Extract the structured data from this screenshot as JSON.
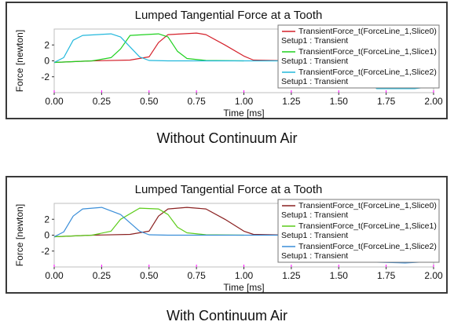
{
  "captions": [
    "Without Continuum Air",
    "With Continuum Air"
  ],
  "colors": {
    "slice0": "#d4202a",
    "slice1": "#1fd11f",
    "slice2": "#22b8dc",
    "slice0_b": "#8a2020",
    "slice1_b": "#5ccc1a",
    "slice2_b": "#3a8ed8",
    "tick": "#ff00ff",
    "frame": "#3a3a3a"
  },
  "chart_data": [
    {
      "type": "line",
      "title": "Lumped Tangential  Force at a Tooth",
      "xlabel": "Time [ms]",
      "ylabel": "Force [newton]",
      "xlim": [
        0,
        2
      ],
      "ylim": [
        -4,
        4
      ],
      "xticks": [
        "0.00",
        "0.25",
        "0.50",
        "0.75",
        "1.00",
        "1.25",
        "1.50",
        "1.75",
        "2.00"
      ],
      "yticks": [
        "2",
        "0",
        "-2"
      ],
      "legend_position": "top-right",
      "series": [
        {
          "name": "TransientForce_t(ForceLine_1,Slice0)",
          "setup": "Setup1 : Transient",
          "color": "#d4202a",
          "x": [
            0,
            0.2,
            0.4,
            0.5,
            0.55,
            0.6,
            0.75,
            0.8,
            0.9,
            1.0,
            1.05,
            1.25
          ],
          "y": [
            -0.2,
            0,
            0.1,
            0.5,
            2.3,
            3.3,
            3.5,
            3.3,
            2.0,
            0.6,
            0.1,
            0
          ]
        },
        {
          "name": "TransientForce_t(ForceLine_1,Slice1)",
          "setup": "Setup1 : Transient",
          "color": "#1fd11f",
          "x": [
            0,
            0.2,
            0.3,
            0.35,
            0.4,
            0.55,
            0.6,
            0.65,
            0.7,
            0.8,
            1.0
          ],
          "y": [
            -0.2,
            0,
            0.4,
            1.5,
            3.2,
            3.4,
            3.0,
            1.2,
            0.3,
            0.05,
            0
          ]
        },
        {
          "name": "TransientForce_t(ForceLine_1,Slice2)",
          "setup": "Setup1 : Transient",
          "color": "#22b8dc",
          "x": [
            0,
            0.05,
            0.1,
            0.15,
            0.3,
            0.35,
            0.45,
            0.5,
            0.6,
            1.5,
            1.6,
            1.7,
            1.9,
            2.0
          ],
          "y": [
            -0.2,
            0.4,
            2.6,
            3.2,
            3.4,
            3.0,
            0.5,
            0.05,
            0,
            0,
            -1.5,
            -3.5,
            -3.5,
            -3.2
          ]
        }
      ]
    },
    {
      "type": "line",
      "title": "Lumped Tangential  Force at a Tooth",
      "xlabel": "Time [ms]",
      "ylabel": "Force [newton]",
      "xlim": [
        0,
        2
      ],
      "ylim": [
        -4,
        4
      ],
      "xticks": [
        "0.00",
        "0.25",
        "0.50",
        "0.75",
        "1.00",
        "1.25",
        "1.50",
        "1.75",
        "2.00"
      ],
      "yticks": [
        "2",
        "0",
        "-2"
      ],
      "legend_position": "top-right",
      "series": [
        {
          "name": "TransientForce_t(ForceLine_1,Slice0)",
          "setup": "Setup1 : Transient",
          "color": "#8a2020",
          "x": [
            0,
            0.2,
            0.4,
            0.5,
            0.55,
            0.6,
            0.7,
            0.8,
            0.9,
            1.0,
            1.05,
            1.25
          ],
          "y": [
            -0.2,
            0,
            0.1,
            0.5,
            2.4,
            3.3,
            3.5,
            3.3,
            2.0,
            0.5,
            0.1,
            0
          ]
        },
        {
          "name": "TransientForce_t(ForceLine_1,Slice1)",
          "setup": "Setup1 : Transient",
          "color": "#5ccc1a",
          "x": [
            0,
            0.2,
            0.3,
            0.35,
            0.45,
            0.55,
            0.6,
            0.65,
            0.7,
            0.8,
            1.0
          ],
          "y": [
            -0.2,
            0,
            0.5,
            2.0,
            3.4,
            3.3,
            2.6,
            1.0,
            0.3,
            0.05,
            0
          ]
        },
        {
          "name": "TransientForce_t(ForceLine_1,Slice2)",
          "setup": "Setup1 : Transient",
          "color": "#3a8ed8",
          "x": [
            0,
            0.05,
            0.1,
            0.15,
            0.25,
            0.35,
            0.45,
            0.5,
            0.6,
            1.5,
            1.6,
            1.7,
            1.85,
            2.0
          ],
          "y": [
            -0.2,
            0.4,
            2.4,
            3.3,
            3.5,
            2.6,
            0.5,
            0.05,
            0,
            0,
            -1.5,
            -3.4,
            -3.5,
            -3.3
          ]
        }
      ]
    }
  ]
}
